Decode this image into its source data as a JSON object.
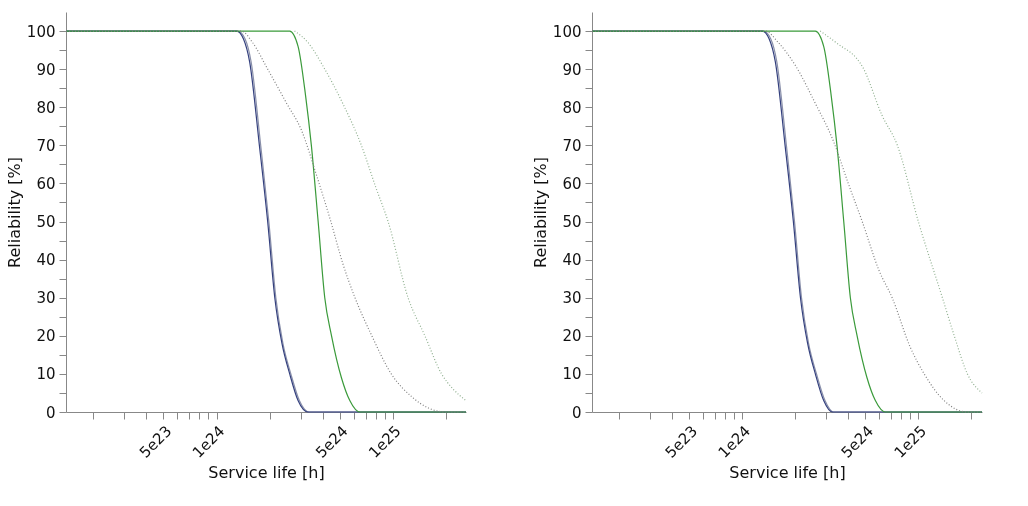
{
  "chart_data": [
    {
      "type": "line",
      "xlabel": "Service life [h]",
      "ylabel": "Reliability [%]",
      "log": "x",
      "grid": false,
      "marker": "none",
      "xlim": [
        1.4e+23,
        2.6e+25
      ],
      "ylim": [
        0,
        105
      ],
      "xticks": [
        {
          "value": 2e+23,
          "label": null
        },
        {
          "value": 3e+23,
          "label": null
        },
        {
          "value": 4e+23,
          "label": null
        },
        {
          "value": 5e+23,
          "label": "5e23"
        },
        {
          "value": 6e+23,
          "label": null
        },
        {
          "value": 7e+23,
          "label": null
        },
        {
          "value": 8e+23,
          "label": null
        },
        {
          "value": 9e+23,
          "label": null
        },
        {
          "value": 1e+24,
          "label": "1e24"
        },
        {
          "value": 2e+24,
          "label": null
        },
        {
          "value": 3e+24,
          "label": null
        },
        {
          "value": 4e+24,
          "label": null
        },
        {
          "value": 5e+24,
          "label": "5e24"
        },
        {
          "value": 6e+24,
          "label": null
        },
        {
          "value": 7e+24,
          "label": null
        },
        {
          "value": 8e+24,
          "label": null
        },
        {
          "value": 9e+24,
          "label": null
        },
        {
          "value": 1e+25,
          "label": "1e25"
        },
        {
          "value": 2e+25,
          "label": null
        }
      ],
      "yticks": [
        0,
        {
          "value": 5,
          "label": null
        },
        10,
        {
          "value": 15,
          "label": null
        },
        20,
        {
          "value": 25,
          "label": null
        },
        30,
        {
          "value": 35,
          "label": null
        },
        40,
        {
          "value": 45,
          "label": null
        },
        50,
        {
          "value": 55,
          "label": null
        },
        60,
        {
          "value": 65,
          "label": null
        },
        70,
        {
          "value": 75,
          "label": null
        },
        80,
        {
          "value": 85,
          "label": null
        },
        90,
        {
          "value": 95,
          "label": null
        },
        100
      ],
      "series": [
        {
          "color": "#8a90aa",
          "line_style": "solid",
          "x": [
            1.4e+23,
            1.32e+24,
            1.45e+24,
            1.57e+24,
            1.78e+24,
            1.98e+24,
            2.17e+24,
            2.38e+24,
            2.64e+24,
            2.95e+24,
            3.35e+24,
            2.6e+25
          ],
          "values": [
            100,
            100,
            98,
            92,
            70,
            50,
            30,
            18,
            10,
            3,
            0,
            0
          ]
        },
        {
          "color": "#34407e",
          "line_style": "solid",
          "x": [
            1.4e+23,
            1.3e+24,
            1.42e+24,
            1.54e+24,
            1.75e+24,
            1.95e+24,
            2.14e+24,
            2.35e+24,
            2.6e+24,
            2.9e+24,
            3.3e+24,
            2.6e+25
          ],
          "values": [
            100,
            100,
            98,
            92,
            70,
            50,
            30,
            18,
            10,
            3,
            0,
            0
          ]
        },
        {
          "color": "#3a9a3a",
          "line_style": "solid",
          "x": [
            1.4e+23,
            2.6e+24,
            2.9e+24,
            3.2e+24,
            3.45e+24,
            3.77e+24,
            4.11e+24,
            4.49e+24,
            5.11e+24,
            5.7e+24,
            6.5e+24,
            2.6e+25
          ],
          "values": [
            100,
            100,
            96,
            83,
            70,
            50,
            30,
            20,
            9,
            3,
            0,
            0
          ]
        },
        {
          "color": "#808080",
          "line_style": "dotted",
          "x": [
            1.4e+23,
            1.38e+24,
            1.6e+24,
            1.95e+24,
            2.5e+24,
            3.03e+24,
            3.7e+24,
            4.45e+24,
            5.2e+24,
            6.1e+24,
            7.6e+24,
            9.8e+24,
            1.28e+25,
            1.6e+25,
            2e+25,
            2.6e+25
          ],
          "values": [
            100,
            100,
            97,
            90,
            81,
            74,
            62,
            50,
            39,
            30,
            20,
            10,
            4,
            1,
            0,
            0
          ]
        },
        {
          "color": "#90b090",
          "line_style": "dotted",
          "x": [
            2.77e+24,
            3.3e+24,
            4.11e+24,
            5.2e+24,
            6.63e+24,
            8e+24,
            9.4e+24,
            1.22e+25,
            1.52e+25,
            1.89e+25,
            2.2e+25,
            2.6e+25
          ],
          "values": [
            100,
            97,
            90,
            81,
            70,
            59,
            50,
            30,
            20,
            10,
            6,
            3
          ]
        }
      ]
    },
    {
      "type": "line",
      "xlabel": "Service life [h]",
      "ylabel": "Reliability [%]",
      "log": "x",
      "grid": false,
      "marker": "none",
      "xlim": [
        1.4e+23,
        2.3e+25
      ],
      "ylim": [
        0,
        105
      ],
      "xticks": [
        {
          "value": 2e+23,
          "label": null
        },
        {
          "value": 3e+23,
          "label": null
        },
        {
          "value": 4e+23,
          "label": null
        },
        {
          "value": 5e+23,
          "label": "5e23"
        },
        {
          "value": 6e+23,
          "label": null
        },
        {
          "value": 7e+23,
          "label": null
        },
        {
          "value": 8e+23,
          "label": null
        },
        {
          "value": 9e+23,
          "label": null
        },
        {
          "value": 1e+24,
          "label": "1e24"
        },
        {
          "value": 2e+24,
          "label": null
        },
        {
          "value": 3e+24,
          "label": null
        },
        {
          "value": 4e+24,
          "label": null
        },
        {
          "value": 5e+24,
          "label": "5e24"
        },
        {
          "value": 6e+24,
          "label": null
        },
        {
          "value": 7e+24,
          "label": null
        },
        {
          "value": 8e+24,
          "label": null
        },
        {
          "value": 9e+24,
          "label": null
        },
        {
          "value": 1e+25,
          "label": "1e25"
        },
        {
          "value": 2e+25,
          "label": null
        }
      ],
      "yticks": [
        0,
        {
          "value": 5,
          "label": null
        },
        10,
        {
          "value": 15,
          "label": null
        },
        20,
        {
          "value": 25,
          "label": null
        },
        30,
        {
          "value": 35,
          "label": null
        },
        40,
        {
          "value": 45,
          "label": null
        },
        50,
        {
          "value": 55,
          "label": null
        },
        60,
        {
          "value": 65,
          "label": null
        },
        70,
        {
          "value": 75,
          "label": null
        },
        80,
        {
          "value": 85,
          "label": null
        },
        90,
        {
          "value": 95,
          "label": null
        },
        100
      ],
      "series": [
        {
          "color": "#8a90aa",
          "line_style": "solid",
          "x": [
            1.4e+23,
            1.32e+24,
            1.45e+24,
            1.57e+24,
            1.78e+24,
            1.98e+24,
            2.17e+24,
            2.38e+24,
            2.64e+24,
            2.95e+24,
            3.3e+24,
            2.3e+25
          ],
          "values": [
            100,
            100,
            98,
            92,
            70,
            50,
            30,
            18,
            10,
            3,
            0,
            0
          ]
        },
        {
          "color": "#34407e",
          "line_style": "solid",
          "x": [
            1.4e+23,
            1.3e+24,
            1.42e+24,
            1.54e+24,
            1.75e+24,
            1.95e+24,
            2.14e+24,
            2.35e+24,
            2.6e+24,
            2.9e+24,
            3.25e+24,
            2.3e+25
          ],
          "values": [
            100,
            100,
            98,
            92,
            70,
            50,
            30,
            18,
            10,
            3,
            0,
            0
          ]
        },
        {
          "color": "#3a9a3a",
          "line_style": "solid",
          "x": [
            1.4e+23,
            2.6e+24,
            2.9e+24,
            3.2e+24,
            3.45e+24,
            3.77e+24,
            4.11e+24,
            4.49e+24,
            5.11e+24,
            5.7e+24,
            6.5e+24,
            2.3e+25
          ],
          "values": [
            100,
            100,
            96,
            83,
            70,
            50,
            30,
            20,
            9,
            3,
            0,
            0
          ]
        },
        {
          "color": "#808080",
          "line_style": "dotted",
          "x": [
            1.4e+23,
            1.35e+24,
            1.6e+24,
            2e+24,
            2.6e+24,
            3.3e+24,
            4e+24,
            4.8e+24,
            6e+24,
            7.1e+24,
            9e+24,
            1.08e+25,
            1.4e+25,
            1.9e+25,
            2.3e+25
          ],
          "values": [
            100,
            100,
            97,
            91,
            81,
            71,
            60,
            50,
            37,
            30,
            17,
            10,
            3,
            0,
            0
          ]
        },
        {
          "color": "#90b090",
          "line_style": "dotted",
          "x": [
            2.77e+24,
            3.4e+24,
            4.9e+24,
            6.2e+24,
            7.6e+24,
            1e+25,
            1.37e+25,
            1.6e+25,
            1.9e+25,
            2.3e+25
          ],
          "values": [
            100,
            97,
            90,
            78,
            70,
            50,
            30,
            20,
            10,
            5
          ]
        }
      ]
    }
  ]
}
